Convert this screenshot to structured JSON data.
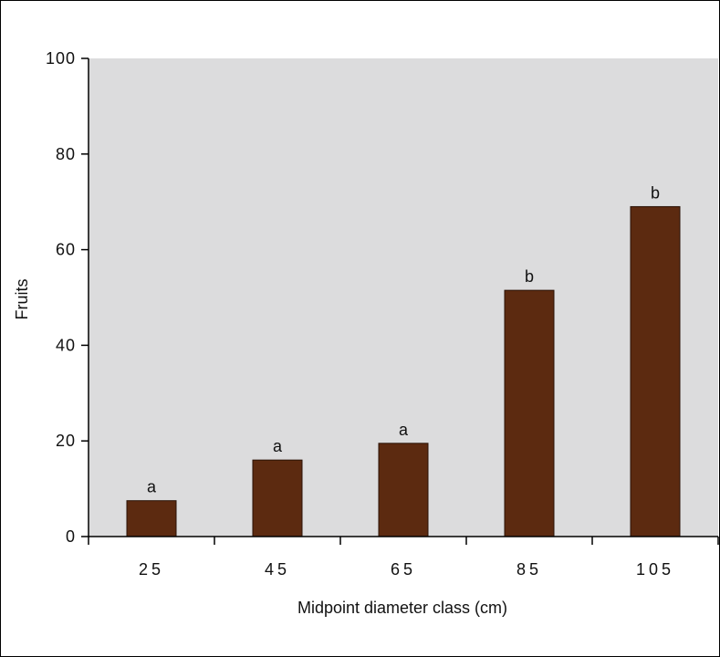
{
  "chart_data": {
    "type": "bar",
    "title": "",
    "xlabel": "Midpoint diameter class (cm)",
    "ylabel": "Fruits",
    "categories": [
      "25",
      "45",
      "65",
      "85",
      "105"
    ],
    "values": [
      7.5,
      16,
      19.5,
      51.5,
      69
    ],
    "bar_labels": [
      "a",
      "a",
      "a",
      "b",
      "b"
    ],
    "ylim": [
      0,
      100
    ],
    "yticks": [
      0,
      20,
      40,
      60,
      80,
      100
    ],
    "grid": false,
    "colors": {
      "bar": "#5c2a10",
      "plot_background": "#dcdcdd",
      "header_band": "#bcd6ea"
    }
  }
}
